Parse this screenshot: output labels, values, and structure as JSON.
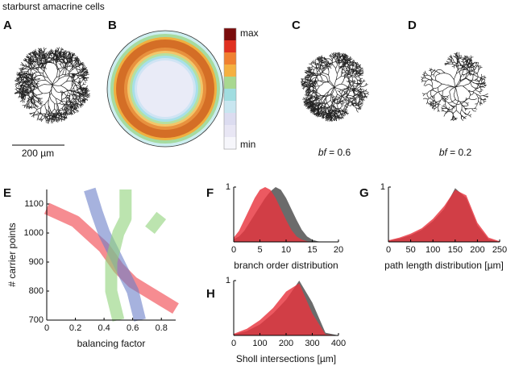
{
  "title": "starburst amacrine cells",
  "panels": {
    "A": {
      "label": "A",
      "scale_bar": "200 µm"
    },
    "B": {
      "label": "B",
      "colorbar": {
        "max": "max",
        "min": "min"
      }
    },
    "C": {
      "label": "C",
      "caption": [
        "bf",
        " = 0.6"
      ]
    },
    "D": {
      "label": "D",
      "caption": [
        "bf",
        " = 0.2"
      ]
    }
  },
  "chart_data": [
    {
      "type": "band",
      "label": "E",
      "xlabel": "balancing factor",
      "ylabel": "# carrier points",
      "xlim": [
        0,
        0.9
      ],
      "ylim": [
        700,
        1150
      ],
      "xticks": [
        0,
        0.2,
        0.4,
        0.6,
        0.8
      ],
      "yticks": [
        700,
        800,
        900,
        1000,
        1100
      ],
      "series": [
        {
          "color": "#f04048",
          "x": [
            0,
            0.2,
            0.4,
            0.5,
            0.6,
            0.7,
            0.8,
            0.9
          ],
          "values": [
            1085,
            1040,
            950,
            880,
            830,
            800,
            770,
            740
          ]
        },
        {
          "color": "#6a7fc8",
          "x": [
            0.3,
            0.35,
            0.4,
            0.5,
            0.6,
            0.65
          ],
          "values": [
            1150,
            1070,
            1000,
            900,
            800,
            700
          ]
        },
        {
          "color": "#8fd27a",
          "x": [
            0.55,
            0.55,
            0.5,
            0.45,
            0.45,
            0.5
          ],
          "values": [
            1150,
            1050,
            1000,
            900,
            800,
            700
          ]
        },
        {
          "color": "#8fd27a",
          "x": [
            0.72,
            0.8
          ],
          "values": [
            1010,
            1060
          ]
        }
      ]
    },
    {
      "type": "area",
      "label": "F",
      "xlabel": "branch order distribution",
      "xlim": [
        0,
        20
      ],
      "ylim": [
        0,
        1
      ],
      "xticks": [
        0,
        5,
        10,
        15,
        20
      ],
      "yticks": [
        1
      ],
      "series": [
        {
          "color": "#6b6b6b",
          "x": [
            0,
            1,
            2,
            3,
            4,
            5,
            6,
            7,
            8,
            9,
            10,
            11,
            12,
            13,
            14,
            15,
            16,
            17,
            18
          ],
          "values": [
            0.05,
            0.1,
            0.2,
            0.35,
            0.5,
            0.65,
            0.8,
            0.92,
            1,
            0.95,
            0.8,
            0.6,
            0.4,
            0.22,
            0.1,
            0.04,
            0.01,
            0,
            0
          ]
        },
        {
          "color": "#e8343e",
          "x": [
            0,
            1,
            2,
            3,
            4,
            5,
            6,
            7,
            8,
            9,
            10,
            11,
            12,
            13,
            14,
            15,
            16,
            17,
            18
          ],
          "values": [
            0.08,
            0.2,
            0.4,
            0.6,
            0.8,
            0.95,
            1,
            0.95,
            0.8,
            0.6,
            0.4,
            0.22,
            0.1,
            0.04,
            0.01,
            0,
            0,
            0,
            0
          ]
        }
      ]
    },
    {
      "type": "area",
      "label": "G",
      "xlabel": "path length distribution [µm]",
      "xlim": [
        0,
        250
      ],
      "ylim": [
        0,
        1
      ],
      "xticks": [
        0,
        50,
        100,
        150,
        200,
        250
      ],
      "yticks": [
        1
      ],
      "series": [
        {
          "color": "#6b6b6b",
          "x": [
            0,
            25,
            50,
            75,
            100,
            125,
            150,
            175,
            200,
            225,
            250
          ],
          "values": [
            0.02,
            0.06,
            0.12,
            0.22,
            0.38,
            0.6,
            0.98,
            0.8,
            0.3,
            0.05,
            0
          ]
        },
        {
          "color": "#e8343e",
          "x": [
            0,
            25,
            50,
            75,
            100,
            125,
            150,
            175,
            200,
            225,
            250
          ],
          "values": [
            0.03,
            0.08,
            0.15,
            0.25,
            0.42,
            0.65,
            0.95,
            0.85,
            0.35,
            0.08,
            0.01
          ]
        }
      ]
    },
    {
      "type": "area",
      "label": "H",
      "xlabel": "Sholl intersections [µm]",
      "xlim": [
        0,
        400
      ],
      "ylim": [
        0,
        1
      ],
      "xticks": [
        0,
        100,
        200,
        300,
        400
      ],
      "yticks": [
        1
      ],
      "series": [
        {
          "color": "#6b6b6b",
          "x": [
            0,
            50,
            100,
            150,
            200,
            250,
            300,
            350,
            400
          ],
          "values": [
            0.02,
            0.08,
            0.2,
            0.4,
            0.65,
            1,
            0.6,
            0.05,
            0
          ]
        },
        {
          "color": "#e8343e",
          "x": [
            0,
            50,
            100,
            150,
            200,
            250,
            300,
            350,
            400
          ],
          "values": [
            0.03,
            0.12,
            0.28,
            0.5,
            0.8,
            0.95,
            0.4,
            0.02,
            0
          ]
        }
      ]
    }
  ]
}
